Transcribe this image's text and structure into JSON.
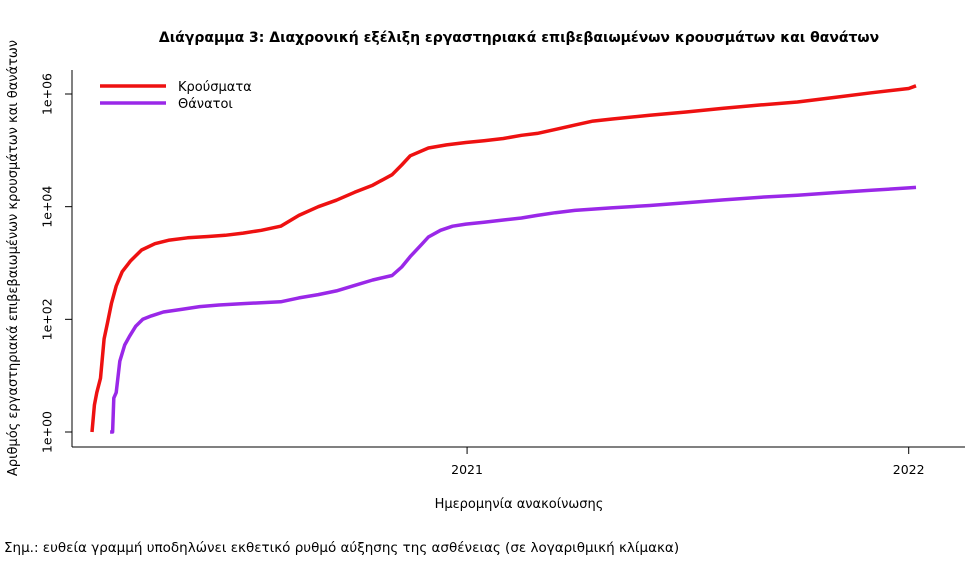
{
  "chart_data": {
    "type": "line",
    "title": "Διάγραμμα 3: Διαχρονική εξέλιξη εργαστηριακά επιβεβαιωμένων κρουσμάτων και θανάτων",
    "xlabel": "Ημερομηνία ανακοίνωσης",
    "ylabel": "Αριθμός εργαστηριακά επιβεβαιωμένων κρουσμάτων και θανάτων",
    "x_scale": "date",
    "y_scale": "log10",
    "xlim": [
      "2020-02-26",
      "2022-01-31"
    ],
    "ylim": [
      1,
      1000000
    ],
    "x_ticks": [
      {
        "date": "2021-01-01",
        "label": "2021"
      },
      {
        "date": "2022-01-01",
        "label": "2022"
      }
    ],
    "y_ticks": [
      {
        "value": 1,
        "label": "1e+00"
      },
      {
        "value": 100,
        "label": "1e+02"
      },
      {
        "value": 10000,
        "label": "1e+04"
      },
      {
        "value": 1000000,
        "label": "1e+06"
      }
    ],
    "grid": false,
    "legend_position": "top-left",
    "series": [
      {
        "name": "Κρούσματα",
        "color": "#ee1111",
        "points": [
          [
            "2020-02-26",
            1
          ],
          [
            "2020-02-28",
            3
          ],
          [
            "2020-03-01",
            5
          ],
          [
            "2020-03-04",
            9
          ],
          [
            "2020-03-07",
            45
          ],
          [
            "2020-03-10",
            90
          ],
          [
            "2020-03-13",
            190
          ],
          [
            "2020-03-17",
            390
          ],
          [
            "2020-03-22",
            700
          ],
          [
            "2020-03-29",
            1100
          ],
          [
            "2020-04-07",
            1700
          ],
          [
            "2020-04-18",
            2200
          ],
          [
            "2020-04-30",
            2550
          ],
          [
            "2020-05-15",
            2800
          ],
          [
            "2020-06-01",
            2950
          ],
          [
            "2020-06-15",
            3100
          ],
          [
            "2020-06-30",
            3400
          ],
          [
            "2020-07-15",
            3800
          ],
          [
            "2020-07-31",
            4500
          ],
          [
            "2020-08-15",
            7000
          ],
          [
            "2020-08-31",
            10000
          ],
          [
            "2020-09-15",
            13000
          ],
          [
            "2020-09-30",
            18000
          ],
          [
            "2020-10-15",
            24000
          ],
          [
            "2020-10-31",
            37000
          ],
          [
            "2020-11-08",
            55000
          ],
          [
            "2020-11-15",
            80000
          ],
          [
            "2020-11-30",
            110000
          ],
          [
            "2020-12-15",
            125000
          ],
          [
            "2020-12-31",
            138000
          ],
          [
            "2021-01-15",
            148000
          ],
          [
            "2021-01-31",
            162000
          ],
          [
            "2021-02-15",
            185000
          ],
          [
            "2021-02-28",
            200000
          ],
          [
            "2021-03-15",
            235000
          ],
          [
            "2021-03-31",
            280000
          ],
          [
            "2021-04-15",
            330000
          ],
          [
            "2021-05-01",
            360000
          ],
          [
            "2021-06-01",
            420000
          ],
          [
            "2021-07-01",
            480000
          ],
          [
            "2021-08-01",
            560000
          ],
          [
            "2021-09-01",
            640000
          ],
          [
            "2021-10-01",
            720000
          ],
          [
            "2021-11-01",
            870000
          ],
          [
            "2021-12-01",
            1050000
          ],
          [
            "2022-01-01",
            1250000
          ],
          [
            "2022-01-07",
            1400000
          ]
        ]
      },
      {
        "name": "Θάνατοι",
        "color": "#9a28e8",
        "points": [
          [
            "2020-03-12",
            1
          ],
          [
            "2020-03-14",
            1
          ],
          [
            "2020-03-15",
            4
          ],
          [
            "2020-03-17",
            5
          ],
          [
            "2020-03-20",
            18
          ],
          [
            "2020-03-24",
            35
          ],
          [
            "2020-03-28",
            50
          ],
          [
            "2020-04-02",
            75
          ],
          [
            "2020-04-08",
            100
          ],
          [
            "2020-04-15",
            115
          ],
          [
            "2020-04-25",
            135
          ],
          [
            "2020-05-10",
            150
          ],
          [
            "2020-05-25",
            168
          ],
          [
            "2020-06-10",
            180
          ],
          [
            "2020-06-30",
            190
          ],
          [
            "2020-07-31",
            205
          ],
          [
            "2020-08-15",
            240
          ],
          [
            "2020-08-31",
            275
          ],
          [
            "2020-09-15",
            320
          ],
          [
            "2020-09-30",
            400
          ],
          [
            "2020-10-15",
            500
          ],
          [
            "2020-10-31",
            600
          ],
          [
            "2020-11-08",
            850
          ],
          [
            "2020-11-15",
            1300
          ],
          [
            "2020-11-25",
            2200
          ],
          [
            "2020-11-30",
            2900
          ],
          [
            "2020-12-10",
            3800
          ],
          [
            "2020-12-20",
            4500
          ],
          [
            "2020-12-31",
            4900
          ],
          [
            "2021-01-15",
            5300
          ],
          [
            "2021-01-31",
            5800
          ],
          [
            "2021-02-15",
            6300
          ],
          [
            "2021-02-28",
            7000
          ],
          [
            "2021-03-15",
            7800
          ],
          [
            "2021-03-31",
            8600
          ],
          [
            "2021-04-30",
            9500
          ],
          [
            "2021-06-01",
            10500
          ],
          [
            "2021-07-01",
            11700
          ],
          [
            "2021-08-01",
            13200
          ],
          [
            "2021-09-01",
            14700
          ],
          [
            "2021-10-01",
            16000
          ],
          [
            "2021-11-01",
            17800
          ],
          [
            "2021-12-01",
            19500
          ],
          [
            "2022-01-01",
            21500
          ],
          [
            "2022-01-07",
            22000
          ]
        ]
      }
    ]
  },
  "note": "Σημ.: ευθεία γραμμή υποδηλώνει εκθετικό ρυθμό αύξησης της ασθένειας (σε λογαριθμική κλίμακα)"
}
